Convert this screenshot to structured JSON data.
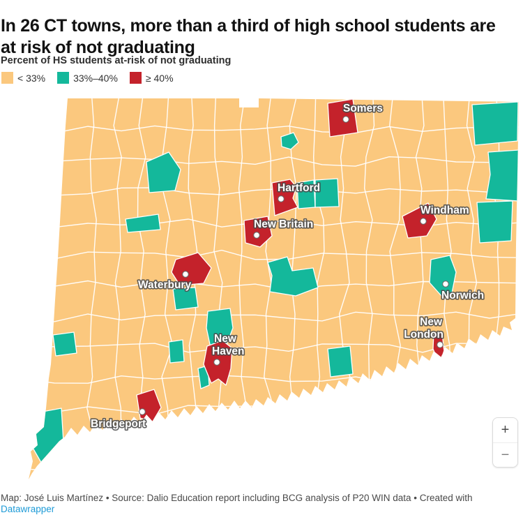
{
  "header": {
    "title": "In 26 CT towns, more than a third of high school students are at risk of not graduating",
    "legend_title": "Percent of HS students at-risk of not graduating"
  },
  "legend": {
    "items": [
      {
        "label": "< 33%",
        "color": "#fbc87e"
      },
      {
        "label": "33%–40%",
        "color": "#14b89b"
      },
      {
        "label": "≥ 40%",
        "color": "#c4222b"
      }
    ]
  },
  "map": {
    "region": "Connecticut towns",
    "colors": {
      "below_33_pct": "#fbc87e",
      "pct_33_to_40": "#14b89b",
      "above_40_pct": "#c4222b",
      "boundaries": "#ffffff"
    },
    "cities": [
      {
        "name": "Somers",
        "category": "≥ 40%"
      },
      {
        "name": "Hartford",
        "category": "≥ 40%"
      },
      {
        "name": "New Britain",
        "category": "≥ 40%"
      },
      {
        "name": "Windham",
        "category": "≥ 40%"
      },
      {
        "name": "Waterbury",
        "category": "≥ 40%"
      },
      {
        "name": "Norwich",
        "category": "33%–40%"
      },
      {
        "name": "New Haven",
        "lines": [
          "New",
          "Haven"
        ],
        "category": "≥ 40%"
      },
      {
        "name": "New London",
        "lines": [
          "New",
          "London"
        ],
        "category": "≥ 40%"
      },
      {
        "name": "Bridgeport",
        "category": "≥ 40%"
      }
    ]
  },
  "zoom_controls": {
    "zoom_in": "+",
    "zoom_out": "−"
  },
  "footer": {
    "credit": "Map: José Luis Martínez • Source: Dalio Education report including BCG analysis of P20 WIN data • Created with ",
    "link": "Datawrapper"
  }
}
